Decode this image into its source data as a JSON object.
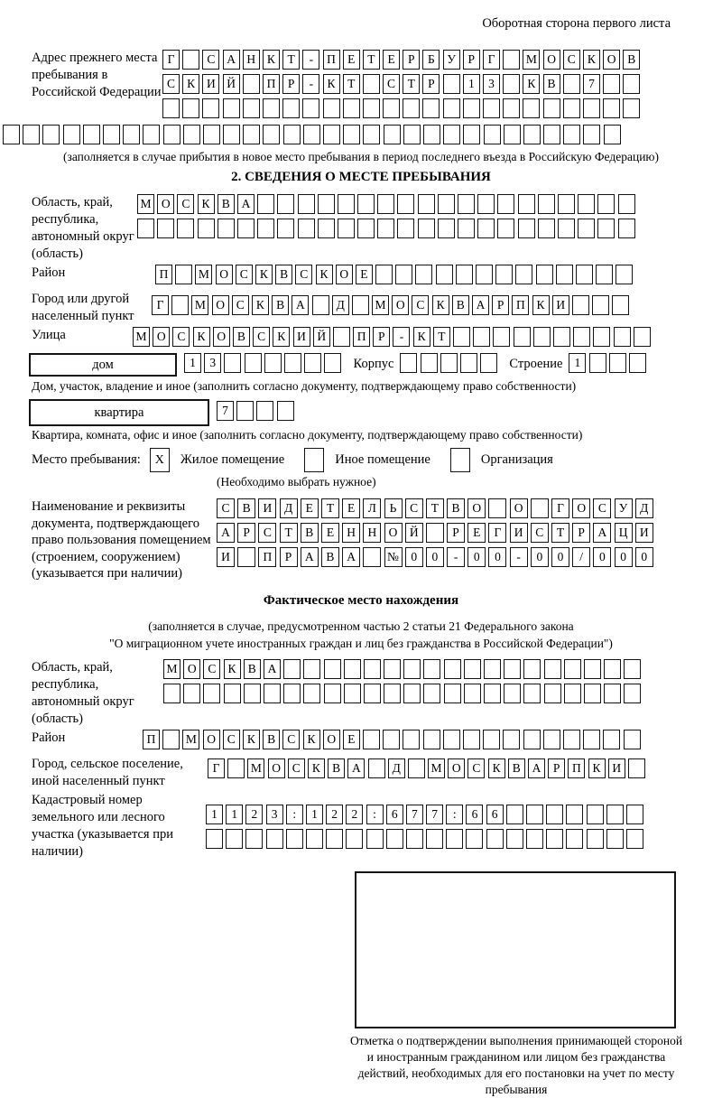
{
  "header": {
    "note": "Оборотная сторона первого листа"
  },
  "prev_address": {
    "label": "Адрес прежнего места пребывания в Российской Федерации",
    "rows": [
      "Г САНКТ-ПЕТЕРБУРГ МОСКОВ",
      "СКИЙ ПР-КТ СТР 13 КВ 7  ",
      "                        ",
      "                               "
    ],
    "note": "(заполняется в случае прибытия в новое место пребывания в период последнего въезда в Российскую Федерацию)"
  },
  "section2": {
    "title": "2. СВЕДЕНИЯ О МЕСТЕ ПРЕБЫВАНИЯ",
    "oblast": {
      "label": "Область, край, республика, автономный округ (область)",
      "rows": [
        "МОСКВА                   ",
        "                         "
      ]
    },
    "raion": {
      "label": "Район",
      "row": "П МОСКВСКОЕ             "
    },
    "gorod": {
      "label": "Город или другой населенный пункт",
      "row": "Г МОСКВА Д МОСКВАРПКИ   "
    },
    "ulitsa": {
      "label": "Улица",
      "row": "МОСКОВСКИЙ ПР-КТ          "
    },
    "dom": {
      "box_label": "дом",
      "cells": "13      ",
      "korpus_label": "Корпус",
      "korpus_cells": "     ",
      "stroenie_label": "Строение",
      "stroenie_cells": "1   "
    },
    "dom_note": "Дом, участок, владение и иное (заполнить согласно документу, подтверждающему право собственности)",
    "kvartira": {
      "box_label": "квартира",
      "cells": "7   "
    },
    "kvartira_note": "Квартира, комната, офис и иное (заполнить согласно документу, подтверждающему право собственности)",
    "mesto": {
      "label": "Место пребывания:",
      "options": [
        {
          "label": "Жилое помещение",
          "mark": "X"
        },
        {
          "label": "Иное помещение",
          "mark": ""
        },
        {
          "label": "Организация",
          "mark": ""
        }
      ],
      "note": "(Необходимо выбрать нужное)"
    },
    "doc": {
      "label": "Наименование и реквизиты документа, подтверждающего право пользования помещением (строением, сооружением) (указывается при наличии)",
      "rows": [
        "СВИДЕТЕЛЬСТВО О ГОСУД",
        "АРСТВЕННОЙ РЕГИСТРАЦИ",
        "И ПРАВА №00-00-00/000"
      ]
    }
  },
  "fact": {
    "title": "Фактическое место нахождения",
    "note1": "(заполняется в случае, предусмотренном частью 2 статьи 21 Федерального закона",
    "note2": "\"О миграционном учете иностранных граждан и лиц без гражданства в Российской Федерации\")",
    "oblast": {
      "label": "Область, край, республика, автономный округ (область)",
      "rows": [
        "МОСКВА                  ",
        "                        "
      ]
    },
    "raion": {
      "label": "Район",
      "row": "П МОСКВСКОЕ              "
    },
    "gorod": {
      "label": "Город, сельское поселение, иной населенный пункт",
      "row": "Г МОСКВА Д МОСКВАРПКИ "
    },
    "kadastr": {
      "label": "Кадастровый номер земельного или лесного участка (указывается при наличии)",
      "rows": [
        "1123:122:677:66       ",
        "                      "
      ]
    }
  },
  "stamp": {
    "note": "Отметка о подтверждении выполнения принимающей стороной и иностранным гражданином или лицом без гражданства действий, необходимых для его постановки на учет по месту пребывания"
  }
}
